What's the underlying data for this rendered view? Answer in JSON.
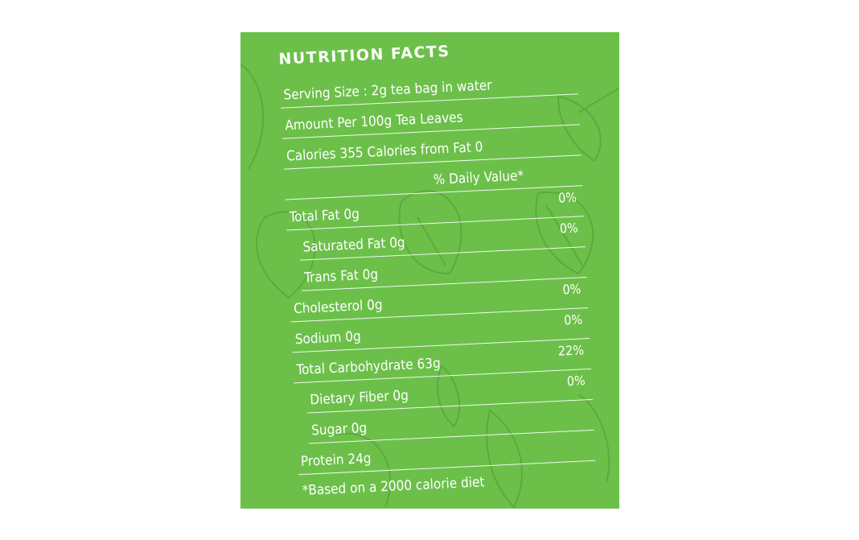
{
  "label": {
    "title": "NUTRITION FACTS",
    "serving_size": "Serving Size : 2g tea bag in water",
    "amount_per": "Amount Per 100g Tea Leaves",
    "calories": "Calories 355 Calories from Fat 0",
    "daily_value_header": "% Daily Value*",
    "nutrients": [
      {
        "name": "Total Fat 0g",
        "dv": "0%"
      },
      {
        "name": "Saturated Fat 0g",
        "dv": "0%"
      },
      {
        "name": "Trans Fat 0g",
        "dv": ""
      },
      {
        "name": "Cholesterol 0g",
        "dv": "0%"
      },
      {
        "name": "Sodium 0g",
        "dv": "0%"
      },
      {
        "name": "Total Carbohydrate 63g",
        "dv": "22%"
      },
      {
        "name": "Dietary Fiber 0g",
        "dv": "0%"
      },
      {
        "name": "Sugar 0g",
        "dv": ""
      },
      {
        "name": "Protein 24g",
        "dv": ""
      }
    ],
    "footnote": "*Based on a 2000 calorie diet"
  },
  "colors": {
    "background": "#6cc04a",
    "text": "#ffffff",
    "leaf_outline": "#5aa83c"
  }
}
